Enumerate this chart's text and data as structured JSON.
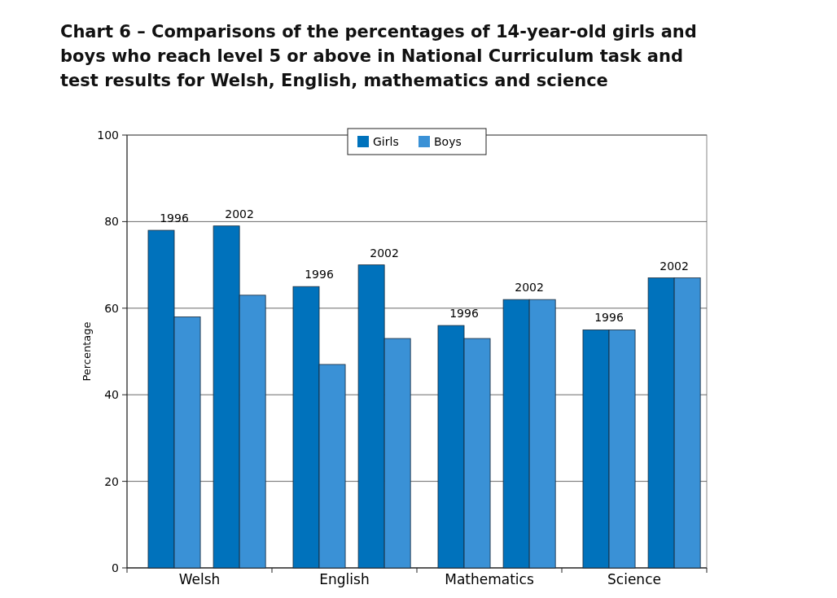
{
  "chart_data": {
    "type": "bar",
    "title": "Chart 6 – Comparisons of the percentages of 14-year-old girls and boys who reach level 5 or above in National Curriculum task and test results for Welsh, English, mathematics and science",
    "ylabel": "Percentage",
    "categories": [
      "Welsh",
      "English",
      "Mathematics",
      "Science"
    ],
    "series": [
      {
        "name": "Girls",
        "color": "#0072bc",
        "values": [
          78,
          65,
          56,
          55
        ]
      },
      {
        "name": "Boys",
        "color": "#3a91d6",
        "values": [
          58,
          47,
          53,
          55
        ]
      },
      {
        "color": "#0072bc",
        "values": [
          79,
          70,
          62,
          67
        ]
      },
      {
        "color": "#3a91d6",
        "values": [
          63,
          53,
          62,
          67
        ]
      }
    ],
    "annotations": [
      "1996",
      "2002",
      "1996",
      "2002",
      "1996",
      "2002",
      "1996",
      "2002"
    ],
    "ylim": [
      0,
      100
    ],
    "yticks": [
      0,
      20,
      40,
      60,
      80,
      100
    ],
    "grid": "y",
    "legend": "top"
  }
}
